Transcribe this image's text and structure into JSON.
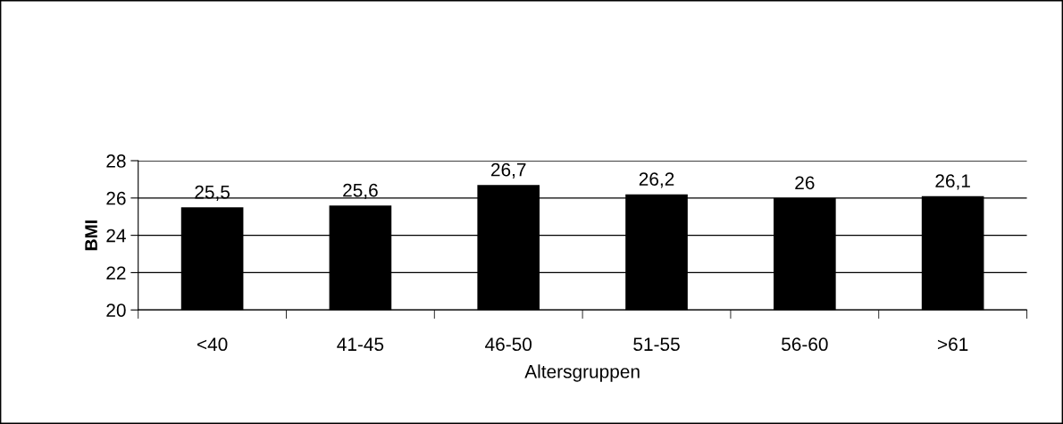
{
  "chart_data": {
    "type": "bar",
    "xlabel": "Altersgruppen",
    "ylabel": "BMI",
    "categories": [
      "<40",
      "41-45",
      "46-50",
      "51-55",
      "56-60",
      ">61"
    ],
    "values": [
      25.5,
      25.6,
      26.7,
      26.2,
      26,
      26.1
    ],
    "value_labels": [
      "25,5",
      "25,6",
      "26,7",
      "26,2",
      "26",
      "26,1"
    ],
    "color": "#000000",
    "ylim": [
      20,
      28
    ],
    "yticks": [
      20,
      22,
      24,
      26,
      28
    ],
    "grid": "y"
  }
}
